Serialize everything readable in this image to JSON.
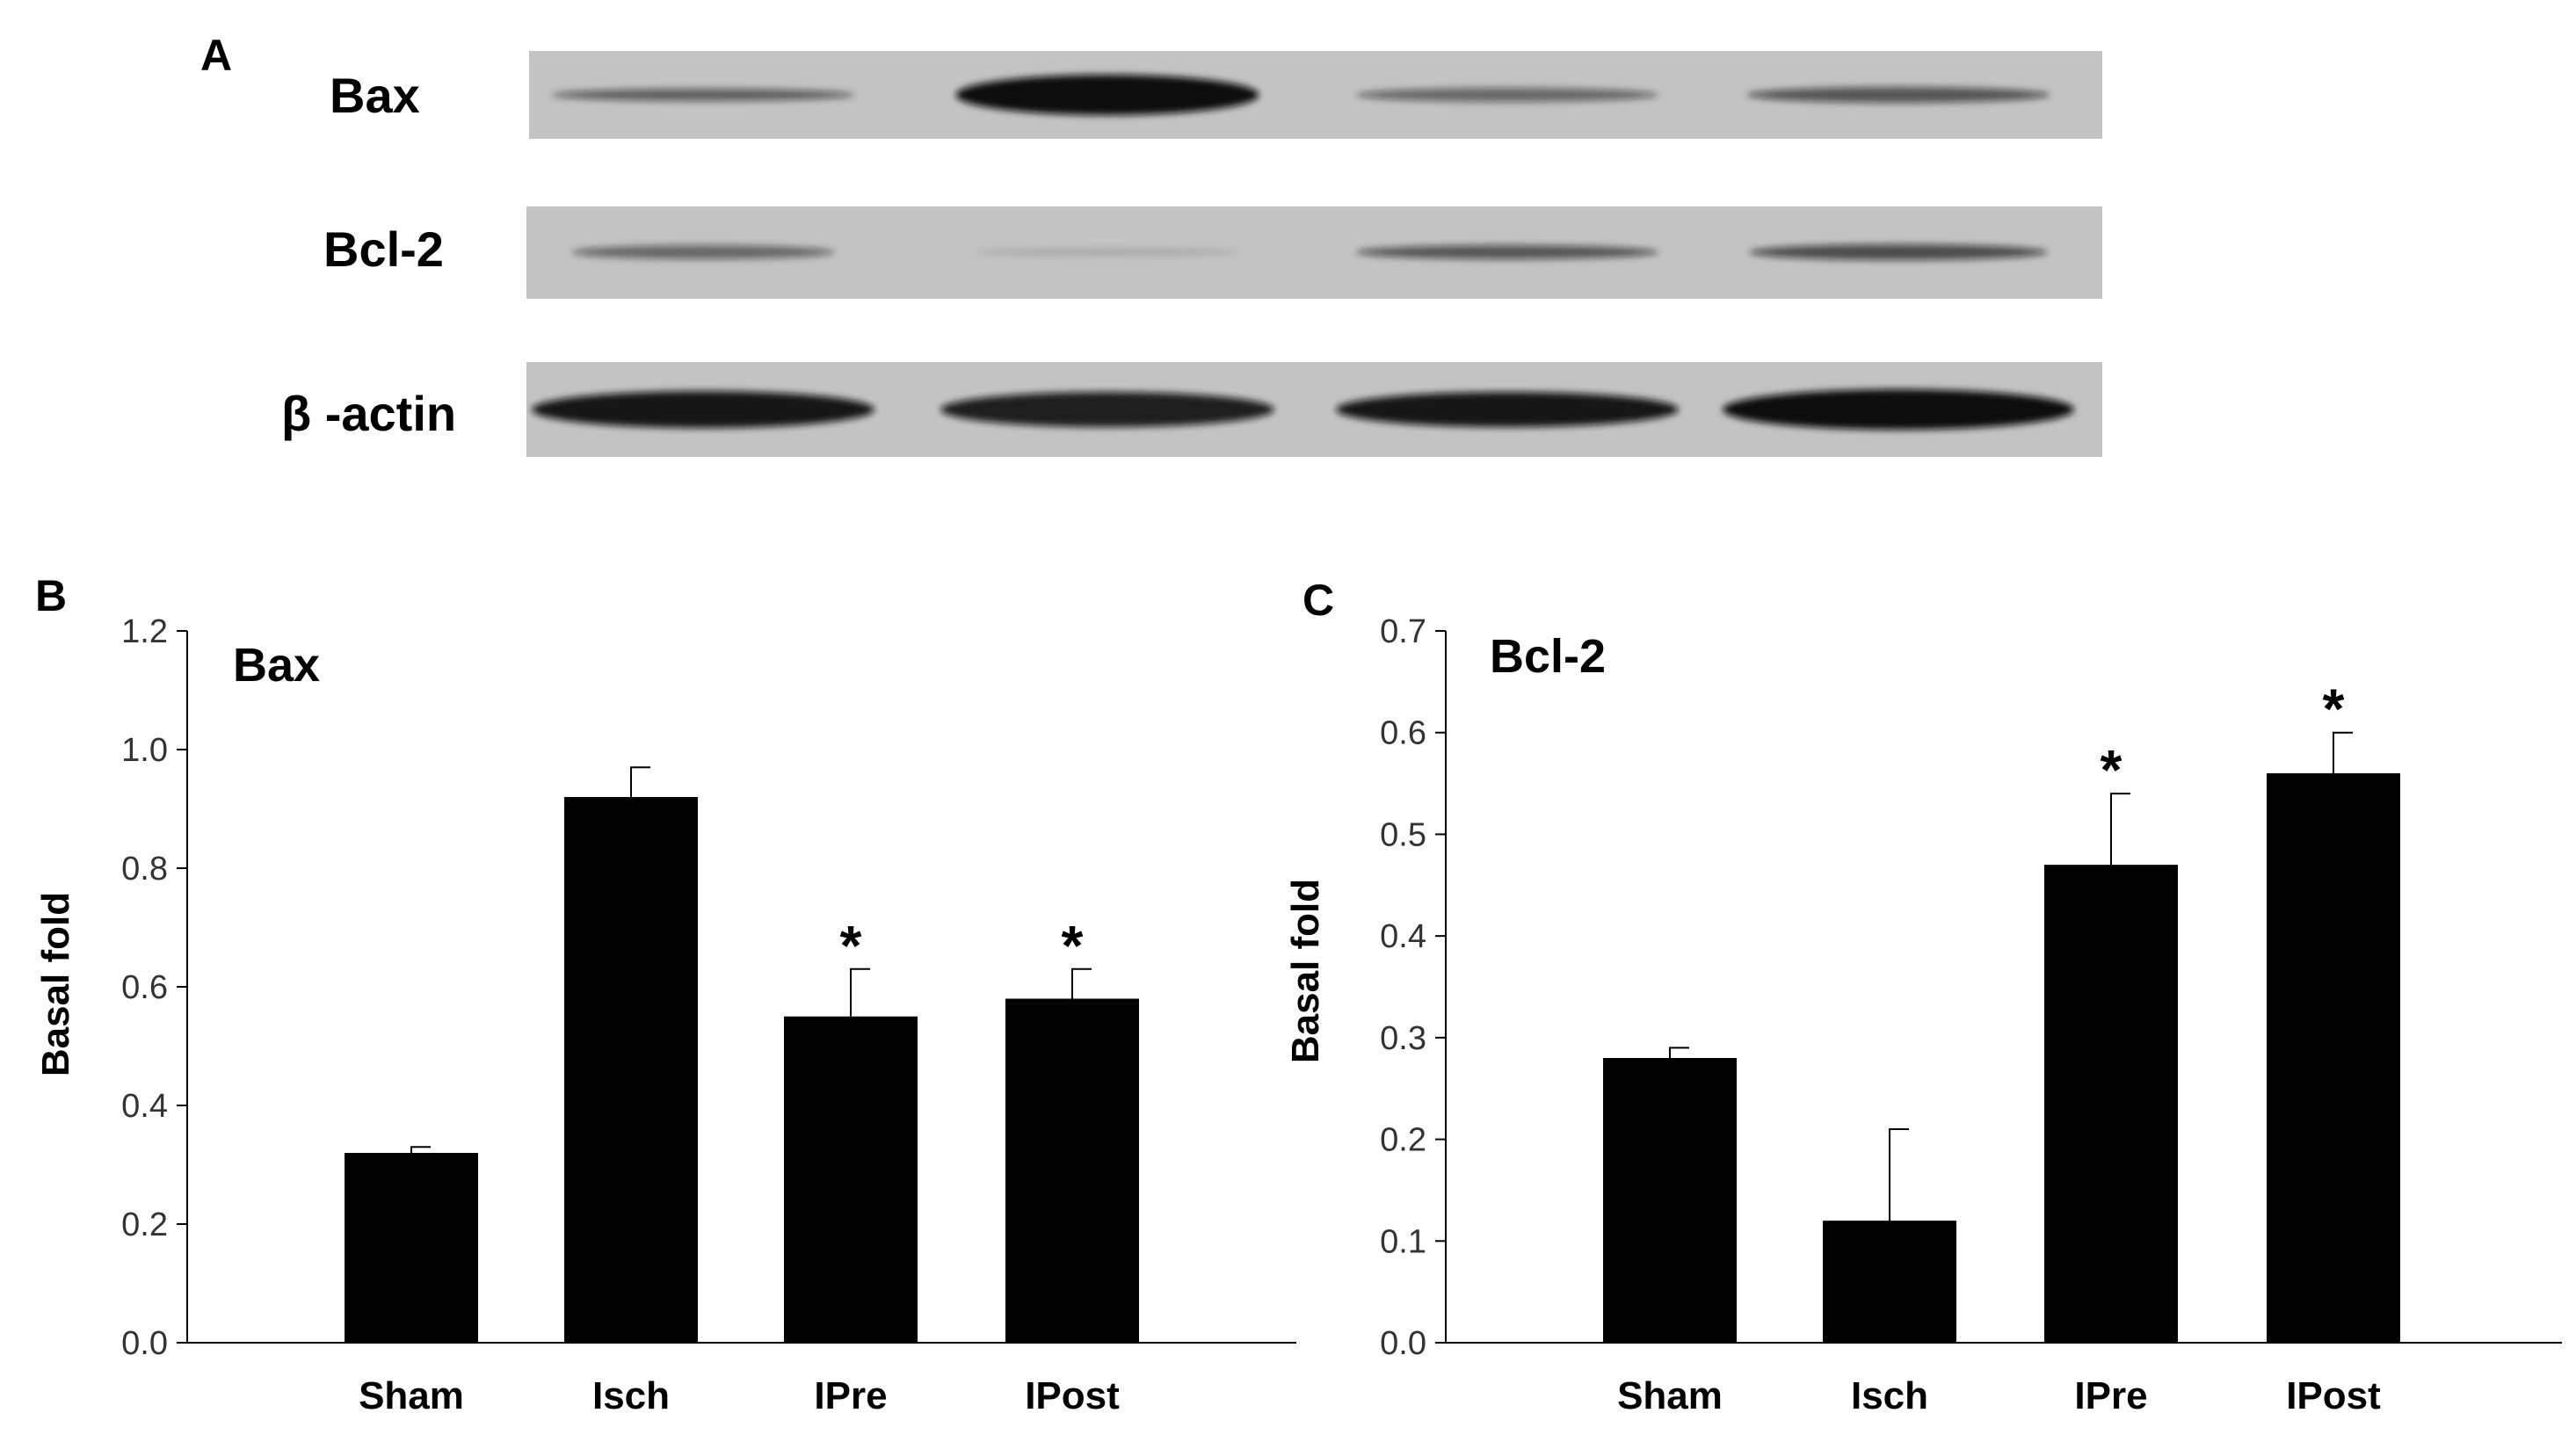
{
  "panels": {
    "a": "A",
    "b": "B",
    "c": "C"
  },
  "blot": {
    "band_color": "#111111",
    "membrane_color": "#c3c3c3",
    "rows": [
      {
        "label": "Bax",
        "intensity": [
          0.55,
          1.0,
          0.5,
          0.6
        ]
      },
      {
        "label": "Bcl-2",
        "intensity": [
          0.5,
          0.15,
          0.6,
          0.65
        ]
      },
      {
        "label": "β -actin",
        "intensity": [
          0.95,
          0.9,
          0.95,
          1.0
        ]
      }
    ]
  },
  "chart_data": [
    {
      "type": "bar",
      "title": "Bax",
      "ylabel": "Basal fold",
      "xlabel": "",
      "categories": [
        "Sham",
        "Isch",
        "IPre",
        "IPost"
      ],
      "values": [
        0.32,
        0.92,
        0.55,
        0.58
      ],
      "errors": [
        0.01,
        0.05,
        0.08,
        0.05
      ],
      "significance": [
        "",
        "",
        "*",
        "*"
      ],
      "ylim": [
        0.0,
        1.2
      ],
      "yticks": [
        "0.0",
        "0.2",
        "0.4",
        "0.6",
        "0.8",
        "1.0",
        "1.2"
      ],
      "grid": false,
      "bar_color": "#000000"
    },
    {
      "type": "bar",
      "title": "Bcl-2",
      "ylabel": "Basal fold",
      "xlabel": "",
      "categories": [
        "Sham",
        "Isch",
        "IPre",
        "IPost"
      ],
      "values": [
        0.28,
        0.12,
        0.47,
        0.56
      ],
      "errors": [
        0.01,
        0.09,
        0.07,
        0.04
      ],
      "significance": [
        "",
        "",
        "*",
        "*"
      ],
      "ylim": [
        0.0,
        0.7
      ],
      "yticks": [
        "0.0",
        "0.1",
        "0.2",
        "0.3",
        "0.4",
        "0.5",
        "0.6",
        "0.7"
      ],
      "grid": false,
      "bar_color": "#000000"
    }
  ]
}
